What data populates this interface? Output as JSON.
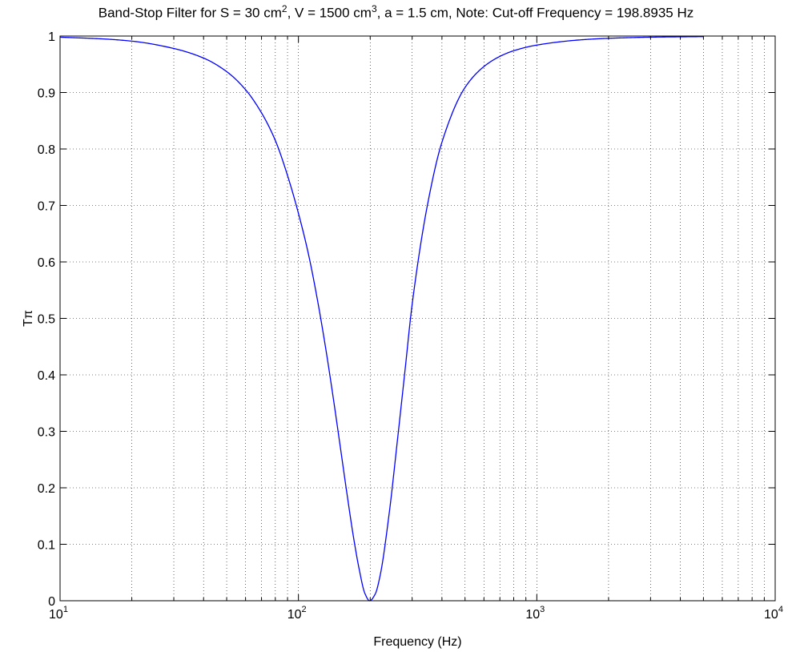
{
  "chart_data": {
    "type": "line",
    "title": {
      "p1": "Band-Stop Filter for S = 30 cm",
      "sup1": "2",
      "p2": ", V = 1500 cm",
      "sup2": "3",
      "p3": ", a = 1.5 cm, Note: Cut-off Frequency = 198.8935 Hz"
    },
    "xlabel": "Frequency (Hz)",
    "ylabel": "Tπ",
    "xscale": "log",
    "xlim": [
      10,
      10000
    ],
    "ylim": [
      0,
      1
    ],
    "x_ticks": [
      {
        "base": "10",
        "exp": "1"
      },
      {
        "base": "10",
        "exp": "2"
      },
      {
        "base": "10",
        "exp": "3"
      },
      {
        "base": "10",
        "exp": "4"
      }
    ],
    "y_ticks": [
      "0",
      "0.1",
      "0.2",
      "0.3",
      "0.4",
      "0.5",
      "0.6",
      "0.7",
      "0.8",
      "0.9",
      "1"
    ],
    "grid": true,
    "line_color": "#0000ff",
    "series": [
      {
        "x": [
          10,
          15,
          20,
          30,
          40,
          50,
          60,
          70,
          80,
          90,
          100,
          110,
          120,
          130,
          140,
          150,
          160,
          170,
          180,
          190,
          198.8935,
          210,
          220,
          240,
          260,
          280,
          300,
          350,
          400,
          500,
          600,
          700,
          800,
          1000,
          1500,
          2000,
          3000,
          5000
        ],
        "y": [
          0.998,
          0.995,
          0.991,
          0.978,
          0.961,
          0.937,
          0.905,
          0.864,
          0.815,
          0.753,
          0.686,
          0.615,
          0.534,
          0.448,
          0.359,
          0.271,
          0.188,
          0.114,
          0.055,
          0.013,
          0.0,
          0.012,
          0.044,
          0.153,
          0.283,
          0.408,
          0.525,
          0.707,
          0.812,
          0.909,
          0.946,
          0.964,
          0.974,
          0.984,
          0.993,
          0.996,
          0.998,
          0.999
        ]
      }
    ]
  }
}
